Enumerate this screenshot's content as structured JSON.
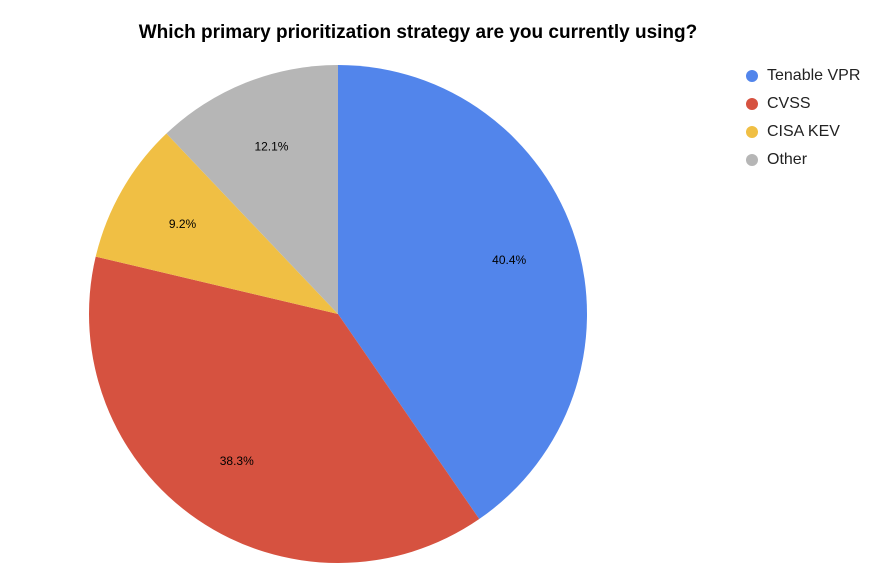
{
  "chart_data": {
    "type": "pie",
    "title": "Which primary prioritization strategy are you currently using?",
    "legend_position": "right",
    "categories": [
      "Tenable VPR",
      "CVSS",
      "CISA KEV",
      "Other"
    ],
    "values": [
      40.4,
      38.3,
      9.2,
      12.1
    ],
    "labels": [
      "40.4%",
      "38.3%",
      "9.2%",
      "12.1%"
    ],
    "colors": [
      "#5285EB",
      "#D65240",
      "#F0BF44",
      "#B6B6B6"
    ]
  }
}
